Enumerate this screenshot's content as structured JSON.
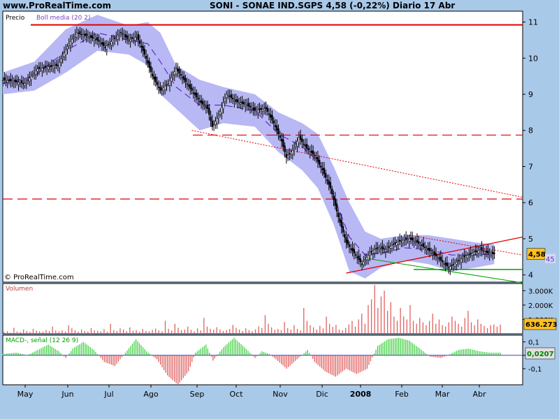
{
  "header": {
    "site": "www.ProRealTime.com",
    "title": "SONI - SONAE IND.SGPS    4,58 (-0,22%)    Diario  17 Abr"
  },
  "price_panel": {
    "label": "Precio",
    "indicator_label": "Boll media (20 2)",
    "watermark": "© ProRealTime.com",
    "last_price_badge": "4,58",
    "boll_badge_partial": "45"
  },
  "volume_panel": {
    "label": "Volumen",
    "last_value_badge": "636.273"
  },
  "macd_panel": {
    "label": "MACD-, señal (12 26 9)",
    "last_value_badge": "0,0207"
  },
  "colors": {
    "background": "#a9c9e9",
    "panel_bg": "#ffffff",
    "boll_band": "#b8b8f4",
    "boll_mid": "#6030c0",
    "resistance": "#e00000",
    "trend_green": "#00a000",
    "volume_bar": "#e06060",
    "macd_pos": "#40d040",
    "macd_neg": "#e06060",
    "macd_zero": "#4040c0",
    "badge": "#ffc020"
  },
  "chart_data": [
    {
      "type": "candlestick",
      "title": "SONI - SONAE IND.SGPS",
      "x_ticks": [
        "May",
        "Jun",
        "Jul",
        "Ago",
        "Sep",
        "Oct",
        "Nov",
        "Dic",
        "2008",
        "Feb",
        "Mar",
        "Abr"
      ],
      "y_ticks": [
        "4",
        "5",
        "6",
        "7",
        "8",
        "9",
        "10",
        "11"
      ],
      "ylim": [
        3.8,
        11.3
      ],
      "last_price": 4.58,
      "close_path": [
        [
          0,
          9.4
        ],
        [
          14,
          9.3
        ],
        [
          22,
          9.7
        ],
        [
          35,
          9.8
        ],
        [
          42,
          10.4
        ],
        [
          47,
          10.7
        ],
        [
          54,
          10.6
        ],
        [
          60,
          10.5
        ],
        [
          65,
          10.3
        ],
        [
          70,
          10.5
        ],
        [
          75,
          10.7
        ],
        [
          80,
          10.5
        ],
        [
          85,
          10.6
        ],
        [
          90,
          10.1
        ],
        [
          95,
          9.5
        ],
        [
          100,
          9.1
        ],
        [
          105,
          9.3
        ],
        [
          110,
          9.7
        ],
        [
          115,
          9.4
        ],
        [
          120,
          9.1
        ],
        [
          125,
          8.8
        ],
        [
          130,
          8.6
        ],
        [
          133,
          8.1
        ],
        [
          137,
          8.4
        ],
        [
          142,
          9.0
        ],
        [
          148,
          8.8
        ],
        [
          155,
          8.7
        ],
        [
          160,
          8.55
        ],
        [
          167,
          8.6
        ],
        [
          172,
          8.2
        ],
        [
          177,
          7.7
        ],
        [
          180,
          7.25
        ],
        [
          185,
          7.5
        ],
        [
          188,
          7.8
        ],
        [
          193,
          7.5
        ],
        [
          198,
          7.3
        ],
        [
          203,
          6.9
        ],
        [
          208,
          6.4
        ],
        [
          213,
          5.6
        ],
        [
          218,
          4.9
        ],
        [
          223,
          4.6
        ],
        [
          228,
          4.3
        ],
        [
          233,
          4.6
        ],
        [
          238,
          4.75
        ],
        [
          243,
          4.7
        ],
        [
          248,
          4.85
        ],
        [
          253,
          4.95
        ],
        [
          258,
          5.0
        ],
        [
          263,
          4.9
        ],
        [
          268,
          4.75
        ],
        [
          273,
          4.6
        ],
        [
          278,
          4.4
        ],
        [
          283,
          4.2
        ],
        [
          288,
          4.35
        ],
        [
          293,
          4.5
        ],
        [
          298,
          4.6
        ],
        [
          303,
          4.7
        ],
        [
          308,
          4.6
        ],
        [
          312,
          4.58
        ]
      ],
      "bollinger_upper": [
        [
          0,
          9.6
        ],
        [
          20,
          9.9
        ],
        [
          40,
          10.8
        ],
        [
          60,
          11.2
        ],
        [
          80,
          10.9
        ],
        [
          92,
          11.0
        ],
        [
          100,
          10.7
        ],
        [
          110,
          9.8
        ],
        [
          125,
          9.4
        ],
        [
          140,
          9.2
        ],
        [
          160,
          9.0
        ],
        [
          175,
          8.5
        ],
        [
          190,
          8.2
        ],
        [
          200,
          7.9
        ],
        [
          210,
          7.0
        ],
        [
          220,
          6.0
        ],
        [
          230,
          5.2
        ],
        [
          240,
          5.0
        ],
        [
          255,
          5.1
        ],
        [
          270,
          5.1
        ],
        [
          285,
          5.0
        ],
        [
          300,
          4.9
        ],
        [
          312,
          4.85
        ]
      ],
      "bollinger_lower": [
        [
          0,
          9.0
        ],
        [
          20,
          9.1
        ],
        [
          40,
          9.6
        ],
        [
          60,
          10.2
        ],
        [
          80,
          10.1
        ],
        [
          92,
          9.8
        ],
        [
          100,
          9.0
        ],
        [
          110,
          8.6
        ],
        [
          125,
          8.0
        ],
        [
          140,
          8.2
        ],
        [
          160,
          8.1
        ],
        [
          175,
          7.4
        ],
        [
          190,
          6.9
        ],
        [
          200,
          6.4
        ],
        [
          210,
          5.4
        ],
        [
          220,
          4.1
        ],
        [
          230,
          3.9
        ],
        [
          240,
          4.2
        ],
        [
          255,
          4.4
        ],
        [
          270,
          4.3
        ],
        [
          285,
          4.1
        ],
        [
          300,
          4.2
        ],
        [
          312,
          4.3
        ]
      ],
      "bollinger_mid": [
        [
          0,
          9.3
        ],
        [
          20,
          9.5
        ],
        [
          40,
          10.2
        ],
        [
          60,
          10.7
        ],
        [
          80,
          10.5
        ],
        [
          92,
          10.4
        ],
        [
          100,
          9.9
        ],
        [
          110,
          9.2
        ],
        [
          125,
          8.7
        ],
        [
          140,
          8.7
        ],
        [
          160,
          8.55
        ],
        [
          175,
          7.9
        ],
        [
          190,
          7.55
        ],
        [
          200,
          7.15
        ],
        [
          210,
          6.2
        ],
        [
          220,
          5.05
        ],
        [
          230,
          4.55
        ],
        [
          240,
          4.6
        ],
        [
          255,
          4.75
        ],
        [
          270,
          4.7
        ],
        [
          285,
          4.55
        ],
        [
          300,
          4.55
        ],
        [
          312,
          4.58
        ]
      ],
      "levels": [
        {
          "style": "solid",
          "value": 10.92
        },
        {
          "style": "dashed",
          "value": 7.87
        },
        {
          "style": "dashed",
          "value": 6.1
        },
        {
          "style": "solid_green",
          "value": 4.15
        }
      ],
      "trendlines": [
        {
          "color": "red_solid",
          "from": [
            218,
            4.05
          ],
          "to": [
            330,
            5.05
          ]
        },
        {
          "color": "red_dotted",
          "from": [
            120,
            8.0
          ],
          "to": [
            330,
            6.15
          ]
        },
        {
          "color": "red_dotted",
          "from": [
            258,
            5.1
          ],
          "to": [
            330,
            4.55
          ]
        },
        {
          "color": "green_solid",
          "from": [
            232,
            4.45
          ],
          "to": [
            330,
            3.78
          ]
        }
      ]
    },
    {
      "type": "bar",
      "title": "Volumen",
      "y_ticks": [
        "1.000K",
        "2.000K",
        "3.000K"
      ],
      "ylim": [
        0,
        3500
      ],
      "last_value": 636273,
      "values": [
        120,
        180,
        90,
        420,
        160,
        120,
        300,
        200,
        140,
        350,
        220,
        180,
        150,
        260,
        190,
        500,
        230,
        170,
        240,
        160,
        600,
        380,
        250,
        150,
        300,
        200,
        160,
        400,
        250,
        220,
        180,
        320,
        150,
        700,
        260,
        200,
        380,
        300,
        180,
        450,
        220,
        260,
        150,
        330,
        200,
        170,
        280,
        360,
        240,
        180,
        900,
        350,
        230,
        700,
        420,
        260,
        300,
        500,
        280,
        170,
        380,
        240,
        1100,
        500,
        350,
        280,
        460,
        300,
        200,
        260,
        340,
        620,
        420,
        300,
        200,
        380,
        260,
        180,
        300,
        520,
        400,
        1300,
        700,
        450,
        280,
        340,
        260,
        820,
        400,
        300,
        600,
        350,
        240,
        1800,
        900,
        600,
        450,
        300,
        560,
        380,
        1200,
        700,
        480,
        620,
        300,
        250,
        400,
        650,
        900,
        500,
        1000,
        1400,
        700,
        2000,
        2400,
        3400,
        1800,
        2600,
        3000,
        1600,
        2200,
        1200,
        900,
        1800,
        1200,
        1000,
        2000,
        900,
        700,
        1100,
        800,
        600,
        900,
        1400,
        700,
        1000,
        600,
        500,
        800,
        1200,
        900,
        700,
        500,
        1100,
        1600,
        800,
        600,
        1000,
        700,
        550,
        400,
        600,
        650,
        500,
        636
      ]
    },
    {
      "type": "bar",
      "title": "MACD-, señal (12 26 9)",
      "y_ticks": [
        "0,1",
        "0",
        "-0,1"
      ],
      "ylim": [
        -0.22,
        0.15
      ],
      "last_value": 0.0207,
      "anchors": [
        [
          0,
          0.01
        ],
        [
          8,
          0.02
        ],
        [
          14,
          0.0
        ],
        [
          20,
          0.04
        ],
        [
          26,
          0.08
        ],
        [
          32,
          0.03
        ],
        [
          36,
          -0.02
        ],
        [
          40,
          0.05
        ],
        [
          46,
          0.1
        ],
        [
          52,
          0.04
        ],
        [
          58,
          -0.05
        ],
        [
          64,
          -0.08
        ],
        [
          70,
          0.02
        ],
        [
          76,
          0.12
        ],
        [
          82,
          0.03
        ],
        [
          88,
          -0.03
        ],
        [
          94,
          -0.15
        ],
        [
          100,
          -0.22
        ],
        [
          106,
          -0.12
        ],
        [
          110,
          0.02
        ],
        [
          116,
          0.08
        ],
        [
          120,
          -0.04
        ],
        [
          126,
          0.06
        ],
        [
          132,
          0.13
        ],
        [
          138,
          0.06
        ],
        [
          144,
          -0.02
        ],
        [
          148,
          0.03
        ],
        [
          152,
          0.01
        ],
        [
          156,
          -0.03
        ],
        [
          162,
          -0.1
        ],
        [
          168,
          -0.03
        ],
        [
          174,
          0.04
        ],
        [
          178,
          -0.05
        ],
        [
          184,
          -0.12
        ],
        [
          190,
          -0.16
        ],
        [
          196,
          -0.1
        ],
        [
          202,
          -0.14
        ],
        [
          208,
          -0.1
        ],
        [
          214,
          0.07
        ],
        [
          220,
          0.12
        ],
        [
          226,
          0.13
        ],
        [
          232,
          0.11
        ],
        [
          238,
          0.05
        ],
        [
          244,
          -0.01
        ],
        [
          250,
          -0.02
        ],
        [
          254,
          0.0
        ],
        [
          260,
          0.04
        ],
        [
          266,
          0.05
        ],
        [
          272,
          0.03
        ],
        [
          278,
          0.02
        ],
        [
          284,
          0.02
        ]
      ]
    }
  ]
}
